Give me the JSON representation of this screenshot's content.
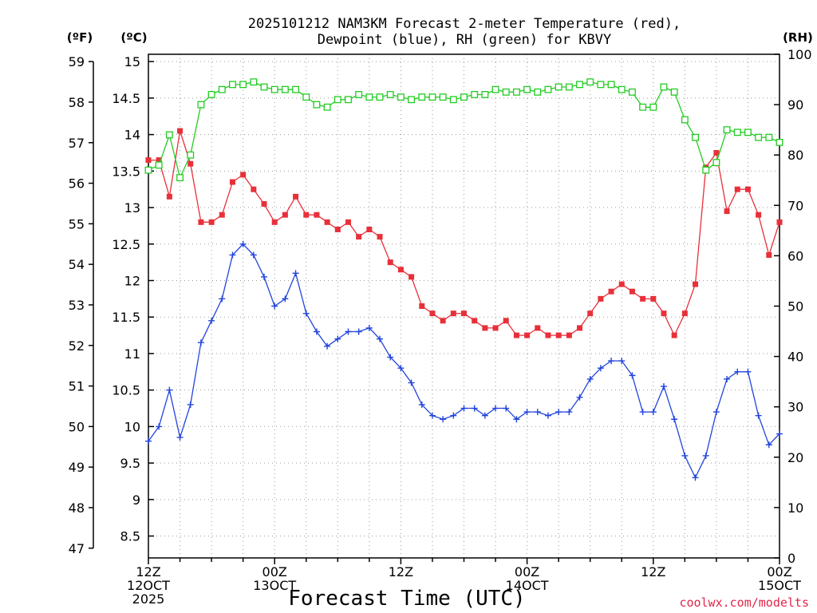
{
  "chart_data": {
    "type": "line",
    "title_line1": "2025101212 NAM3KM Forecast 2-meter Temperature (red),",
    "title_line2": "Dewpoint (blue), RH (green) for KBVY",
    "xlabel": "Forecast Time (UTC)",
    "credit": "coolwx.com/modelts",
    "units": {
      "f": "(ºF)",
      "c": "(ºC)",
      "rh": "(RH)"
    },
    "x_range_hours": [
      0,
      60
    ],
    "c_range": [
      8.2,
      15.1
    ],
    "f_ticks": [
      "47",
      "48",
      "49",
      "50",
      "51",
      "52",
      "53",
      "54",
      "55",
      "56",
      "57",
      "58",
      "59"
    ],
    "c_ticks": [
      "8.5",
      "9",
      "9.5",
      "10",
      "10.5",
      "11",
      "11.5",
      "12",
      "12.5",
      "13",
      "13.5",
      "14",
      "14.5",
      "15"
    ],
    "rh_ticks": [
      "0",
      "10",
      "20",
      "30",
      "40",
      "50",
      "60",
      "70",
      "80",
      "90",
      "100"
    ],
    "x_ticks": [
      {
        "hour": 0,
        "line1": "12Z",
        "line2": "12OCT",
        "line3": "2025"
      },
      {
        "hour": 12,
        "line1": "00Z",
        "line2": "13OCT",
        "line3": ""
      },
      {
        "hour": 24,
        "line1": "12Z",
        "line2": "",
        "line3": ""
      },
      {
        "hour": 36,
        "line1": "00Z",
        "line2": "14OCT",
        "line3": ""
      },
      {
        "hour": 48,
        "line1": "12Z",
        "line2": "",
        "line3": ""
      },
      {
        "hour": 60,
        "line1": "00Z",
        "line2": "15OCT",
        "line3": ""
      }
    ],
    "series": [
      {
        "name": "2-meter Temperature",
        "units": "C",
        "color": "#e8303a",
        "marker": "filled-square",
        "values": [
          13.65,
          13.65,
          13.15,
          14.05,
          13.6,
          12.8,
          12.8,
          12.9,
          13.35,
          13.45,
          13.25,
          13.05,
          12.8,
          12.9,
          13.15,
          12.9,
          12.9,
          12.8,
          12.7,
          12.8,
          12.6,
          12.7,
          12.6,
          12.25,
          12.15,
          12.05,
          11.65,
          11.55,
          11.45,
          11.55,
          11.55,
          11.45,
          11.35,
          11.35,
          11.45,
          11.25,
          11.25,
          11.35,
          11.25,
          11.25,
          11.25,
          11.35,
          11.55,
          11.75,
          11.85,
          11.95,
          11.85,
          11.75,
          11.75,
          11.55,
          11.25,
          11.55,
          11.95,
          13.55,
          13.75,
          12.95,
          13.25,
          13.25,
          12.9,
          12.35,
          12.8
        ]
      },
      {
        "name": "Dewpoint",
        "units": "C",
        "color": "#2244dd",
        "marker": "plus",
        "values": [
          9.8,
          10.0,
          10.5,
          9.85,
          10.3,
          11.15,
          11.45,
          11.75,
          12.35,
          12.5,
          12.35,
          12.05,
          11.65,
          11.75,
          12.1,
          11.55,
          11.3,
          11.1,
          11.2,
          11.3,
          11.3,
          11.35,
          11.2,
          10.95,
          10.8,
          10.6,
          10.3,
          10.15,
          10.1,
          10.15,
          10.25,
          10.25,
          10.15,
          10.25,
          10.25,
          10.1,
          10.2,
          10.2,
          10.15,
          10.2,
          10.2,
          10.4,
          10.65,
          10.8,
          10.9,
          10.9,
          10.7,
          10.2,
          10.2,
          10.55,
          10.1,
          9.6,
          9.3,
          9.6,
          10.2,
          10.65,
          10.75,
          10.75,
          10.15,
          9.75,
          9.9
        ]
      },
      {
        "name": "RH",
        "units": "%",
        "color": "#22cc22",
        "marker": "open-square",
        "values": [
          77,
          78,
          84,
          75.5,
          80,
          90,
          92,
          93,
          94,
          94,
          94.5,
          93.5,
          93,
          93,
          93,
          91.5,
          90,
          89.5,
          91,
          91,
          92,
          91.5,
          91.5,
          92,
          91.5,
          91,
          91.5,
          91.5,
          91.5,
          91,
          91.5,
          92,
          92,
          93,
          92.5,
          92.5,
          93,
          92.5,
          93,
          93.5,
          93.5,
          94,
          94.5,
          94,
          94,
          93,
          92.5,
          89.5,
          89.5,
          93.5,
          92.5,
          87,
          83.5,
          77,
          78.5,
          85,
          84.5,
          84.5,
          83.5,
          83.5,
          82.5
        ]
      }
    ]
  }
}
